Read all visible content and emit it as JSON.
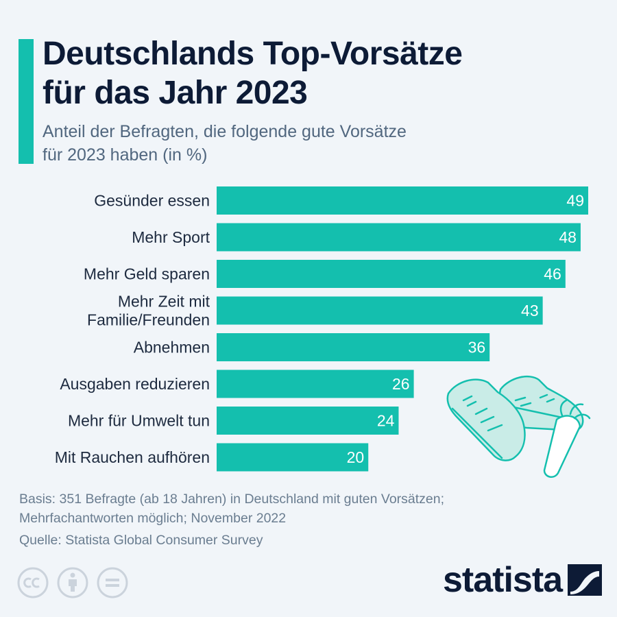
{
  "title": [
    "Deutschlands Top-Vorsätze",
    "für das Jahr 2023"
  ],
  "subtitle": [
    "Anteil der Befragten, die folgende gute Vorsätze",
    "für 2023 haben (in %)"
  ],
  "colors": {
    "accent": "#14bfae",
    "title": "#0d1b36",
    "subtitle": "#51677f",
    "footnote": "#6a7d90",
    "value_label": "#ffffff",
    "category_label": "#1d2a3f",
    "illustration_fill": "#c9ece7",
    "illustration_stroke": "#14bfae"
  },
  "chart_data": {
    "type": "bar",
    "orientation": "horizontal",
    "categories": [
      [
        "Gesünder essen"
      ],
      [
        "Mehr Sport"
      ],
      [
        "Mehr Geld sparen"
      ],
      [
        "Mehr Zeit mit",
        "Familie/Freunden"
      ],
      [
        "Abnehmen"
      ],
      [
        "Ausgaben reduzieren"
      ],
      [
        "Mehr für Umwelt tun"
      ],
      [
        "Mit Rauchen aufhören"
      ]
    ],
    "values": [
      49,
      48,
      46,
      43,
      36,
      26,
      24,
      20
    ],
    "unit": "%",
    "xlim": [
      0,
      49
    ],
    "grid": false,
    "data_labels": "inside-end"
  },
  "footnote": {
    "basis": [
      "Basis: 351 Befragte (ab 18 Jahren) in Deutschland mit guten Vorsätzen;",
      "Mehrfachantworten möglich; November 2022"
    ],
    "source": "Quelle: Statista Global Consumer Survey"
  },
  "license_icons": [
    "cc-icon",
    "attribution-icon",
    "no-derivatives-icon"
  ],
  "logo": {
    "text": "statista",
    "icon": "statista-logo-icon"
  },
  "illustration": [
    "sneakers-icon",
    "carrot-icon"
  ]
}
